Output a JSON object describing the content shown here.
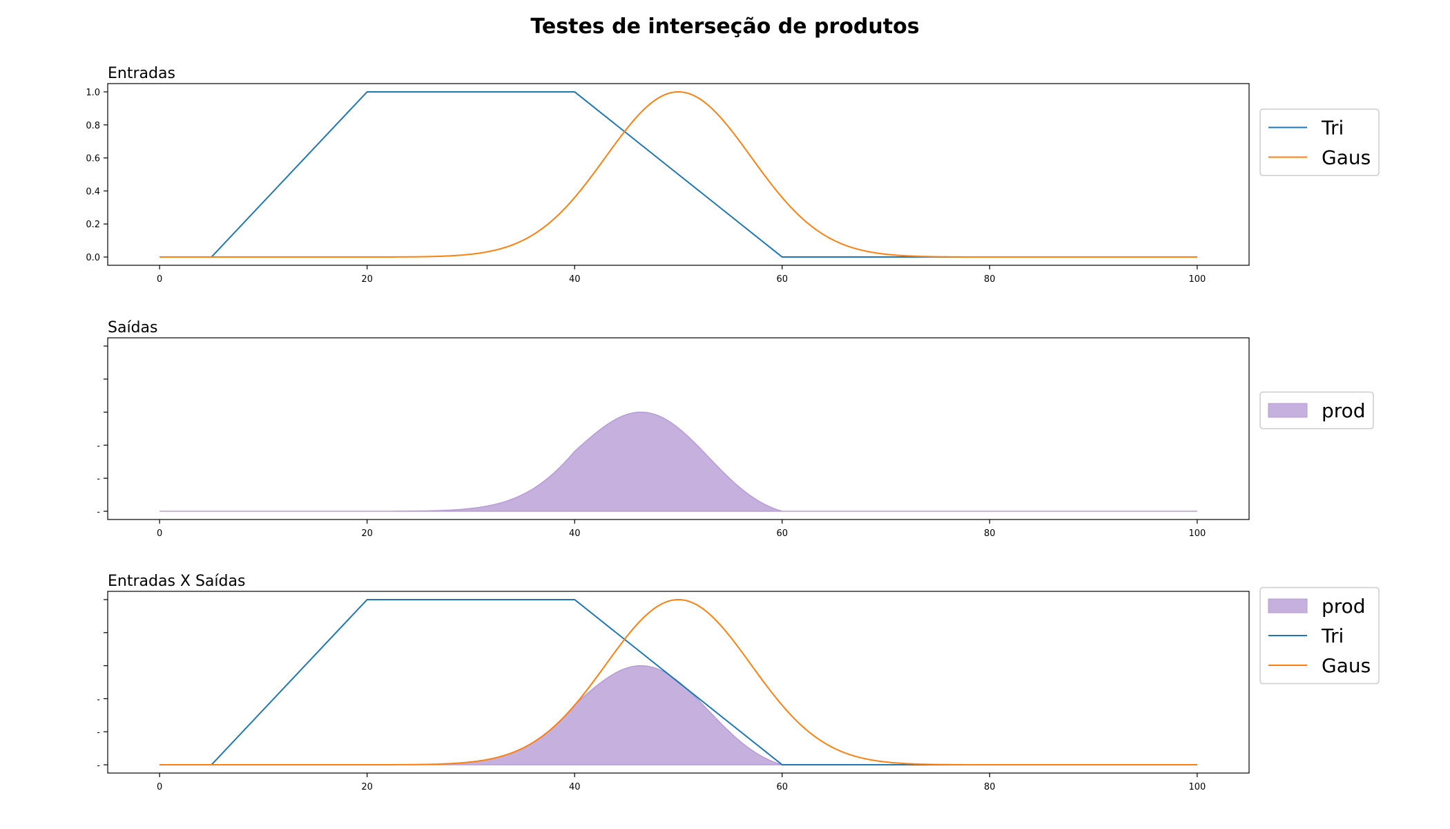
{
  "figure": {
    "title": "Testes de interseção de produtos"
  },
  "colors": {
    "tri": "#1f77b4",
    "gaus": "#ff7f0e",
    "prod_fill": "#c6b0de",
    "prod_edge": "#b79bd6"
  },
  "chart_data": [
    {
      "type": "line",
      "title": "Entradas",
      "xlim": [
        -5,
        105
      ],
      "ylim": [
        -0.05,
        1.05
      ],
      "x_ticks": [
        0,
        20,
        40,
        60,
        80,
        100
      ],
      "y_ticks": [
        0.0,
        0.2,
        0.4,
        0.6,
        0.8,
        1.0
      ],
      "y_tick_labels": [
        "0.0",
        "0.2",
        "0.4",
        "0.6",
        "0.8",
        "1.0"
      ],
      "legend_position": "right",
      "series": [
        {
          "name": "Tri",
          "kind": "line",
          "color": "#1f77b4",
          "x": [
            0,
            5,
            20,
            40,
            60,
            100
          ],
          "y": [
            0,
            0,
            1,
            1,
            0,
            0
          ]
        },
        {
          "name": "Gaus",
          "kind": "line",
          "color": "#ff7f0e",
          "function": "gaussian",
          "mean": 50,
          "sigma": 7,
          "x_range": [
            0,
            100
          ]
        }
      ]
    },
    {
      "type": "area",
      "title": "Saídas",
      "xlim": [
        -5,
        105
      ],
      "ylim": [
        -0.05,
        1.05
      ],
      "x_ticks": [
        0,
        20,
        40,
        60,
        80,
        100
      ],
      "y_ticks": [
        0.0,
        0.2,
        0.4,
        0.6,
        0.8,
        1.0
      ],
      "y_tick_labels": [
        "-",
        "-",
        "-",
        "",
        "",
        ""
      ],
      "legend_position": "right",
      "series": [
        {
          "name": "prod",
          "kind": "area",
          "color": "#c6b0de",
          "function": "product",
          "of": [
            "Tri",
            "Gaus"
          ],
          "x_range": [
            0,
            100
          ],
          "peak": 0.6
        }
      ]
    },
    {
      "type": "line",
      "title": "Entradas X Saídas",
      "xlim": [
        -5,
        105
      ],
      "ylim": [
        -0.05,
        1.05
      ],
      "x_ticks": [
        0,
        20,
        40,
        60,
        80,
        100
      ],
      "y_ticks": [
        0.0,
        0.2,
        0.4,
        0.6,
        0.8,
        1.0
      ],
      "y_tick_labels": [
        "-",
        "-",
        "-",
        "",
        "",
        ""
      ],
      "legend_position": "right",
      "series": [
        {
          "name": "prod",
          "kind": "area",
          "color": "#c6b0de",
          "function": "product",
          "of": [
            "Tri",
            "Gaus"
          ],
          "x_range": [
            0,
            100
          ],
          "peak": 0.6
        },
        {
          "name": "Tri",
          "kind": "line",
          "color": "#1f77b4",
          "x": [
            0,
            5,
            20,
            40,
            60,
            100
          ],
          "y": [
            0,
            0,
            1,
            1,
            0,
            0
          ]
        },
        {
          "name": "Gaus",
          "kind": "line",
          "color": "#ff7f0e",
          "function": "gaussian",
          "mean": 50,
          "sigma": 7,
          "x_range": [
            0,
            100
          ]
        }
      ]
    }
  ]
}
